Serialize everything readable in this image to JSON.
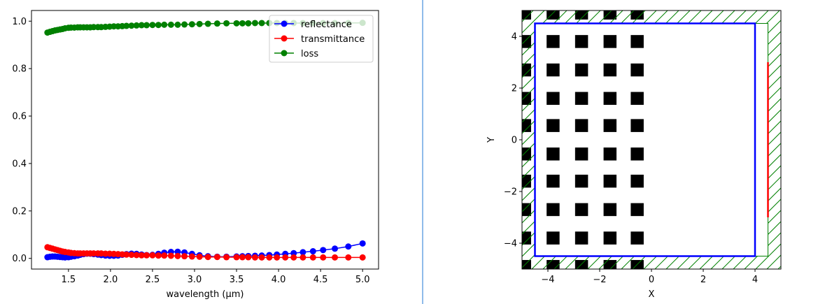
{
  "colors": {
    "reflectance": "#0000ff",
    "transmittance": "#ff0000",
    "loss": "#008000",
    "divider": "#1f77d4",
    "pml_hatch": "#008000",
    "cell_outline": "#0000ff",
    "monitor": "#ff0000",
    "pillar": "#000000"
  },
  "chart_data": [
    {
      "type": "line",
      "title": "",
      "xlabel": "wavelength (μm)",
      "ylabel": "",
      "xlim": [
        1.06,
        5.19
      ],
      "ylim": [
        -0.045,
        1.045
      ],
      "xticks": [
        1.5,
        2.0,
        2.5,
        3.0,
        3.5,
        4.0,
        4.5,
        5.0
      ],
      "xtick_labels": [
        "1.5",
        "2.0",
        "2.5",
        "3.0",
        "3.5",
        "4.0",
        "4.5",
        "5.0"
      ],
      "yticks": [
        0.0,
        0.2,
        0.4,
        0.6,
        0.8,
        1.0
      ],
      "ytick_labels": [
        "0.0",
        "0.2",
        "0.4",
        "0.6",
        "0.8",
        "1.0"
      ],
      "grid": false,
      "legend_position": "top-right",
      "marker": "circle",
      "series": [
        {
          "name": "reflectance",
          "color": "#0000ff",
          "x": [
            1.25,
            1.28,
            1.31,
            1.34,
            1.37,
            1.4,
            1.43,
            1.46,
            1.5,
            1.53,
            1.57,
            1.61,
            1.64,
            1.68,
            1.72,
            1.76,
            1.8,
            1.85,
            1.89,
            1.94,
            1.99,
            2.04,
            2.09,
            2.14,
            2.19,
            2.25,
            2.31,
            2.37,
            2.43,
            2.5,
            2.57,
            2.64,
            2.72,
            2.8,
            2.88,
            2.97,
            3.06,
            3.16,
            3.27,
            3.38,
            3.5,
            3.57,
            3.64,
            3.72,
            3.8,
            3.89,
            3.98,
            4.08,
            4.18,
            4.29,
            4.41,
            4.53,
            4.67,
            4.83,
            5.0
          ],
          "values": [
            0.005,
            0.007,
            0.008,
            0.008,
            0.007,
            0.006,
            0.005,
            0.004,
            0.005,
            0.007,
            0.009,
            0.012,
            0.015,
            0.018,
            0.02,
            0.02,
            0.018,
            0.016,
            0.014,
            0.012,
            0.011,
            0.011,
            0.012,
            0.015,
            0.018,
            0.02,
            0.019,
            0.016,
            0.014,
            0.015,
            0.019,
            0.024,
            0.027,
            0.028,
            0.025,
            0.019,
            0.013,
            0.009,
            0.007,
            0.007,
            0.008,
            0.009,
            0.01,
            0.011,
            0.012,
            0.014,
            0.016,
            0.019,
            0.022,
            0.026,
            0.03,
            0.035,
            0.041,
            0.05,
            0.063
          ]
        },
        {
          "name": "transmittance",
          "color": "#ff0000",
          "x": [
            1.25,
            1.28,
            1.31,
            1.34,
            1.37,
            1.4,
            1.43,
            1.46,
            1.5,
            1.53,
            1.57,
            1.61,
            1.64,
            1.68,
            1.72,
            1.76,
            1.8,
            1.85,
            1.89,
            1.94,
            1.99,
            2.04,
            2.09,
            2.14,
            2.19,
            2.25,
            2.31,
            2.37,
            2.43,
            2.5,
            2.57,
            2.64,
            2.72,
            2.8,
            2.88,
            2.97,
            3.06,
            3.16,
            3.27,
            3.38,
            3.5,
            3.57,
            3.64,
            3.72,
            3.8,
            3.89,
            3.98,
            4.08,
            4.18,
            4.29,
            4.41,
            4.53,
            4.67,
            4.83,
            5.0
          ],
          "values": [
            0.047,
            0.044,
            0.041,
            0.038,
            0.035,
            0.032,
            0.029,
            0.027,
            0.025,
            0.023,
            0.022,
            0.021,
            0.021,
            0.021,
            0.021,
            0.021,
            0.021,
            0.021,
            0.021,
            0.02,
            0.02,
            0.019,
            0.018,
            0.017,
            0.016,
            0.015,
            0.014,
            0.013,
            0.013,
            0.013,
            0.012,
            0.012,
            0.011,
            0.01,
            0.009,
            0.008,
            0.007,
            0.006,
            0.006,
            0.005,
            0.005,
            0.005,
            0.005,
            0.004,
            0.004,
            0.004,
            0.004,
            0.004,
            0.004,
            0.004,
            0.004,
            0.004,
            0.004,
            0.004,
            0.004
          ]
        },
        {
          "name": "loss",
          "color": "#008000",
          "x": [
            1.25,
            1.28,
            1.31,
            1.34,
            1.37,
            1.4,
            1.43,
            1.46,
            1.5,
            1.53,
            1.57,
            1.61,
            1.64,
            1.68,
            1.72,
            1.76,
            1.8,
            1.85,
            1.89,
            1.94,
            1.99,
            2.04,
            2.09,
            2.14,
            2.19,
            2.25,
            2.31,
            2.37,
            2.43,
            2.5,
            2.57,
            2.64,
            2.72,
            2.8,
            2.88,
            2.97,
            3.06,
            3.16,
            3.27,
            3.38,
            3.5,
            3.57,
            3.64,
            3.72,
            3.8,
            3.89,
            3.98,
            4.08,
            4.18,
            4.29,
            4.41,
            4.53,
            4.67,
            4.83,
            5.0
          ],
          "values": [
            0.952,
            0.955,
            0.958,
            0.961,
            0.963,
            0.965,
            0.967,
            0.97,
            0.972,
            0.973,
            0.973,
            0.974,
            0.974,
            0.974,
            0.974,
            0.974,
            0.975,
            0.975,
            0.975,
            0.976,
            0.977,
            0.978,
            0.978,
            0.979,
            0.98,
            0.981,
            0.982,
            0.983,
            0.983,
            0.984,
            0.984,
            0.985,
            0.985,
            0.985,
            0.986,
            0.987,
            0.988,
            0.989,
            0.99,
            0.991,
            0.991,
            0.991,
            0.991,
            0.992,
            0.992,
            0.992,
            0.992,
            0.992,
            0.992,
            0.992,
            0.992,
            0.992,
            0.992,
            0.992,
            0.993
          ]
        }
      ]
    },
    {
      "type": "diagram",
      "title": "",
      "xlabel": "X",
      "ylabel": "Y",
      "xlim": [
        -5,
        5
      ],
      "ylim": [
        -5,
        5
      ],
      "xticks": [
        -4,
        -2,
        0,
        2,
        4
      ],
      "xtick_labels": [
        "−4",
        "−2",
        "0",
        "2",
        "4"
      ],
      "yticks": [
        -4,
        -2,
        0,
        2,
        4
      ],
      "ytick_labels": [
        "−4",
        "−2",
        "0",
        "2",
        "4"
      ],
      "pml_thickness": 0.5,
      "cell_box": {
        "x": [
          -4.5,
          4.0
        ],
        "y": [
          -4.5,
          4.5
        ]
      },
      "monitor_line": {
        "x": 4.5,
        "y": [
          -3.0,
          3.0
        ]
      },
      "pillar_size": 0.5,
      "pillar_columns_x": [
        -4.9,
        -3.8,
        -2.7,
        -1.6,
        -0.55
      ],
      "pillar_rows_y": [
        -4.9,
        -3.8,
        -2.7,
        -1.6,
        -0.55,
        0.55,
        1.6,
        2.7,
        3.8,
        4.9
      ]
    }
  ]
}
